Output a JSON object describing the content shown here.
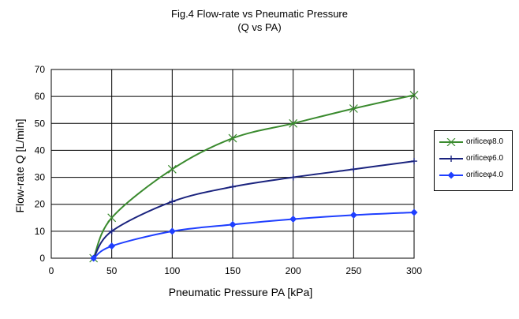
{
  "chart_data": {
    "type": "line",
    "title": "Fig.4 Flow-rate vs Pneumatic Pressure",
    "subtitle": "(Q vs PA)",
    "xlabel": "Pneumatic Pressure PA [kPa]",
    "ylabel": "Flow-rate Q [L/min]",
    "xlim": [
      0,
      300
    ],
    "ylim": [
      0,
      70
    ],
    "xticks": [
      0,
      50,
      100,
      150,
      200,
      250,
      300
    ],
    "yticks": [
      0,
      10,
      20,
      30,
      40,
      50,
      60,
      70
    ],
    "grid": true,
    "legend_position": "right",
    "series": [
      {
        "name": "orificeφ8.0",
        "color": "#3a8a2e",
        "marker": "x",
        "x": [
          35,
          50,
          100,
          150,
          200,
          250,
          300
        ],
        "y": [
          0,
          15,
          33,
          44.5,
          50,
          55.5,
          60.5
        ]
      },
      {
        "name": "orificeφ6.0",
        "color": "#1a237e",
        "marker": "plus",
        "x": [
          35,
          50,
          100,
          150,
          200,
          250,
          300
        ],
        "y": [
          0,
          10,
          21,
          26.5,
          30,
          33,
          36
        ]
      },
      {
        "name": "orificeφ4.0",
        "color": "#1f3fff",
        "marker": "diamond",
        "x": [
          35,
          50,
          100,
          150,
          200,
          250,
          300
        ],
        "y": [
          0,
          4.5,
          10,
          12.5,
          14.5,
          16,
          17
        ]
      }
    ]
  }
}
